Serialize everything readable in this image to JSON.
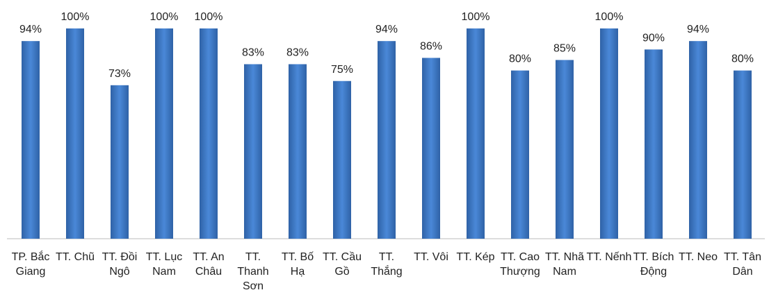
{
  "chart_data": {
    "type": "bar",
    "categories": [
      "TP. Bắc Giang",
      "TT. Chũ",
      "TT. Đồi Ngô",
      "TT. Lục Nam",
      "TT. An Châu",
      "TT. Thanh Sơn",
      "TT. Bố Hạ",
      "TT. Cầu Gồ",
      "TT. Thắng",
      "TT. Vôi",
      "TT. Kép",
      "TT. Cao Thượng",
      "TT. Nhã Nam",
      "TT. Nếnh",
      "TT. Bích Động",
      "TT. Neo",
      "TT. Tân Dân"
    ],
    "values": [
      94,
      100,
      73,
      100,
      100,
      83,
      83,
      75,
      94,
      86,
      100,
      80,
      85,
      100,
      90,
      94,
      80
    ],
    "value_labels": [
      "94%",
      "100%",
      "73%",
      "100%",
      "100%",
      "83%",
      "83%",
      "75%",
      "94%",
      "86%",
      "100%",
      "80%",
      "85%",
      "100%",
      "90%",
      "94%",
      "80%"
    ],
    "color": "#3a75c4",
    "ylim": [
      0,
      100
    ]
  }
}
